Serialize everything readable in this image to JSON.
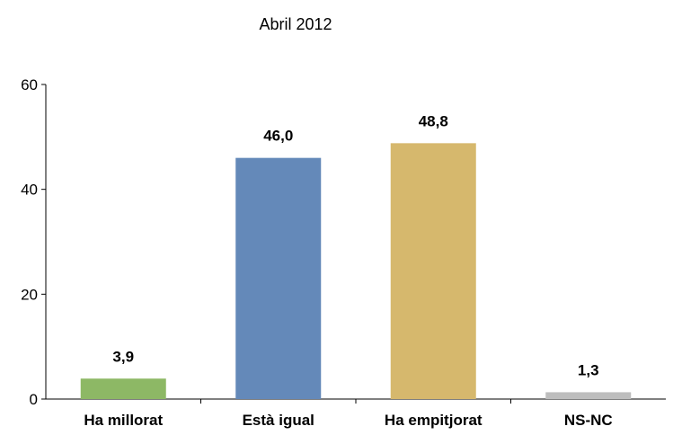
{
  "chart_data": {
    "type": "bar",
    "title": "Abril 2012",
    "categories": [
      "Ha millorat",
      "Està igual",
      "Ha empitjorat",
      "NS-NC"
    ],
    "values": [
      3.9,
      46.0,
      48.8,
      1.3
    ],
    "value_labels": [
      "3,9",
      "46,0",
      "48,8",
      "1,3"
    ],
    "colors": [
      "#8db865",
      "#6489b9",
      "#d6b86d",
      "#bdbdbd"
    ],
    "ylim": [
      0,
      60
    ],
    "yticks": [
      0,
      20,
      40,
      60
    ],
    "xlabel": "",
    "ylabel": "",
    "grid": false,
    "legend": "none"
  }
}
